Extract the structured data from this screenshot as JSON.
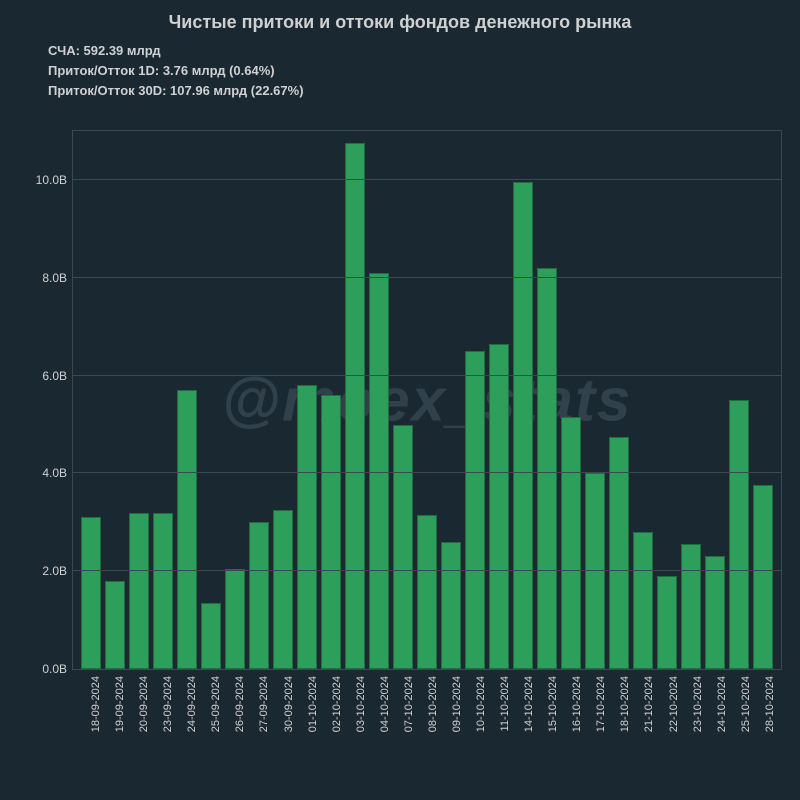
{
  "chart": {
    "type": "bar",
    "title": "Чистые притоки и оттоки фондов денежного рынка",
    "title_fontsize": 18,
    "title_color": "#d0d0d0",
    "subtitles": {
      "line1": "СЧА: 592.39 млрд",
      "line2": "Приток/Отток 1D: 3.76 млрд (0.64%)",
      "line3": "Приток/Отток 30D: 107.96 млрд (22.67%)"
    },
    "subtitle_fontsize": 13,
    "background_color": "#1a2832",
    "grid_color": "#3a4a55",
    "bar_color": "#2e9e5b",
    "bar_border_color": "#1e6e3e",
    "text_color": "#d0d0d0",
    "bar_width": 0.82,
    "watermark": "@moex_stats",
    "watermark_color": "rgba(120,140,150,0.25)",
    "ylim": [
      0,
      11
    ],
    "yticks": [
      {
        "value": 0,
        "label": "0.0B"
      },
      {
        "value": 2,
        "label": "2.0B"
      },
      {
        "value": 4,
        "label": "4.0B"
      },
      {
        "value": 6,
        "label": "6.0B"
      },
      {
        "value": 8,
        "label": "8.0B"
      },
      {
        "value": 10,
        "label": "10.0B"
      }
    ],
    "tick_fontsize": 12,
    "categories": [
      "18-09-2024",
      "19-09-2024",
      "20-09-2024",
      "23-09-2024",
      "24-09-2024",
      "25-09-2024",
      "26-09-2024",
      "27-09-2024",
      "30-09-2024",
      "01-10-2024",
      "02-10-2024",
      "03-10-2024",
      "04-10-2024",
      "07-10-2024",
      "08-10-2024",
      "09-10-2024",
      "10-10-2024",
      "11-10-2024",
      "14-10-2024",
      "15-10-2024",
      "16-10-2024",
      "17-10-2024",
      "18-10-2024",
      "21-10-2024",
      "22-10-2024",
      "23-10-2024",
      "24-10-2024",
      "25-10-2024",
      "28-10-2024"
    ],
    "values": [
      3.1,
      1.8,
      3.2,
      3.2,
      5.7,
      1.35,
      2.05,
      3.0,
      3.25,
      5.8,
      5.6,
      10.75,
      8.1,
      4.98,
      3.15,
      2.6,
      6.5,
      6.65,
      9.95,
      8.2,
      5.15,
      4.0,
      4.75,
      2.8,
      1.9,
      2.55,
      2.32,
      5.5,
      3.76
    ]
  }
}
